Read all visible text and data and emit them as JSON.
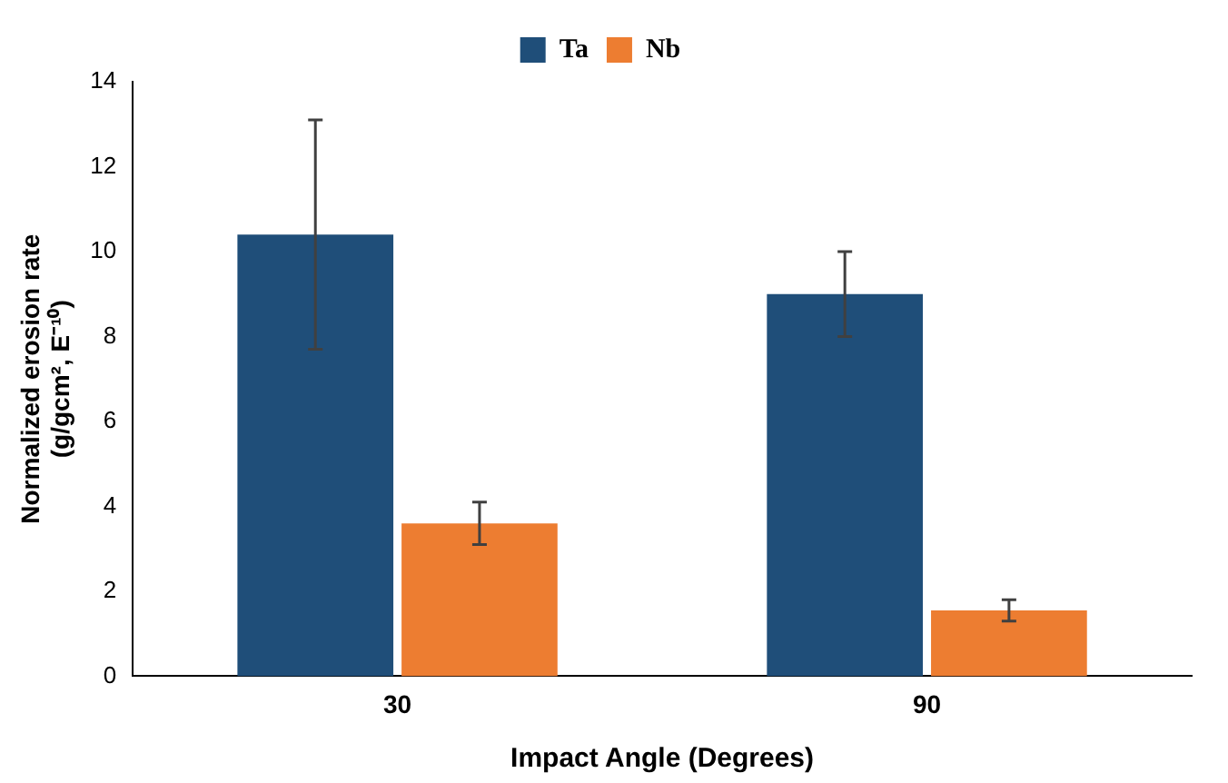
{
  "chart_data": {
    "type": "bar",
    "xlabel": "Impact Angle (Degrees)",
    "ylabel": "Normalized erosion rate\n(g/gcm², E⁻¹⁰)",
    "categories": [
      "30",
      "90"
    ],
    "series": [
      {
        "name": "Ta",
        "color": "#1f4e79",
        "values": [
          10.4,
          9.0
        ],
        "errors": [
          2.7,
          1.0
        ]
      },
      {
        "name": "Nb",
        "color": "#ed7d31",
        "values": [
          3.6,
          1.55
        ],
        "errors": [
          0.5,
          0.25
        ]
      }
    ],
    "ylim": [
      0,
      14
    ],
    "yticks": [
      0,
      2,
      4,
      6,
      8,
      10,
      12,
      14
    ],
    "grid": false,
    "legend": "top"
  }
}
